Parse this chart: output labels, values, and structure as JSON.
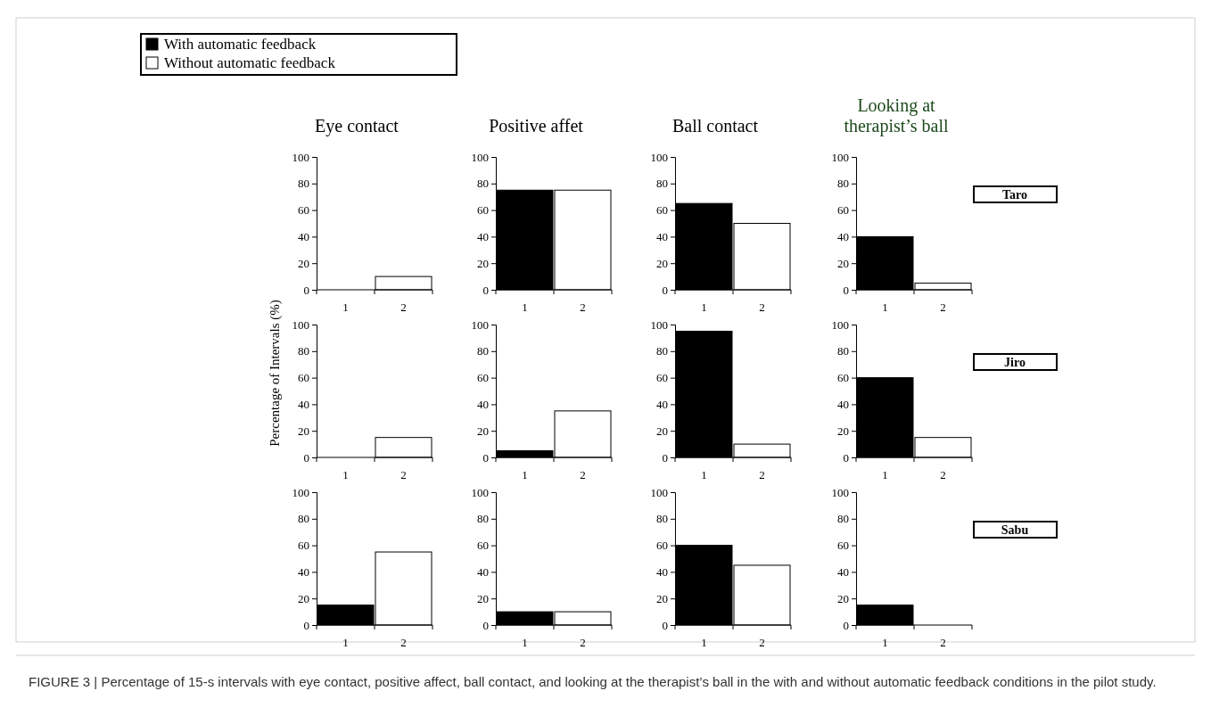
{
  "chart_data": [
    {
      "type": "bar",
      "title": "Eye contact",
      "categories": [
        "1",
        "2"
      ],
      "legend": "top",
      "series": [
        {
          "name": "With automatic feedback",
          "color": "#000000",
          "values": [
            0,
            null
          ]
        },
        {
          "name": "Without automatic feedback",
          "color": "#ffffff",
          "values": [
            null,
            10
          ]
        }
      ],
      "ylim": [
        0,
        100
      ],
      "yticks": [
        0,
        20,
        40,
        60,
        80,
        100
      ]
    },
    {
      "type": "bar",
      "title": "Positive affet",
      "categories": [
        "1",
        "2"
      ],
      "values": [
        75,
        75
      ],
      "colors": [
        "#000000",
        "#ffffff"
      ],
      "ylim": [
        0,
        100
      ],
      "yticks": [
        0,
        20,
        40,
        60,
        80,
        100
      ]
    },
    {
      "type": "bar",
      "title": "Ball contact",
      "categories": [
        "1",
        "2"
      ],
      "values": [
        65,
        50
      ],
      "colors": [
        "#000000",
        "#ffffff"
      ],
      "ylim": [
        0,
        100
      ],
      "yticks": [
        0,
        20,
        40,
        60,
        80,
        100
      ]
    },
    {
      "type": "bar",
      "title": "Looking at therapist’s ball",
      "categories": [
        "1",
        "2"
      ],
      "values": [
        40,
        5
      ],
      "colors": [
        "#000000",
        "#ffffff"
      ],
      "ylim": [
        0,
        100
      ],
      "yticks": [
        0,
        20,
        40,
        60,
        80,
        100
      ],
      "annotations": [
        "Taro"
      ]
    },
    {
      "type": "bar",
      "ylabel": "Percentage of Intervals (%)",
      "categories": [
        "1",
        "2"
      ],
      "values": [
        0,
        15
      ],
      "colors": [
        "#000000",
        "#ffffff"
      ],
      "ylim": [
        0,
        100
      ],
      "yticks": [
        0,
        20,
        40,
        60,
        80,
        100
      ]
    },
    {
      "type": "bar",
      "categories": [
        "1",
        "2"
      ],
      "values": [
        5,
        35
      ],
      "colors": [
        "#000000",
        "#ffffff"
      ],
      "ylim": [
        0,
        100
      ],
      "yticks": [
        0,
        20,
        40,
        60,
        80,
        100
      ]
    },
    {
      "type": "bar",
      "categories": [
        "1",
        "2"
      ],
      "values": [
        95,
        10
      ],
      "colors": [
        "#000000",
        "#ffffff"
      ],
      "ylim": [
        0,
        100
      ],
      "yticks": [
        0,
        20,
        40,
        60,
        80,
        100
      ]
    },
    {
      "type": "bar",
      "categories": [
        "1",
        "2"
      ],
      "values": [
        60,
        15
      ],
      "colors": [
        "#000000",
        "#ffffff"
      ],
      "ylim": [
        0,
        100
      ],
      "yticks": [
        0,
        20,
        40,
        60,
        80,
        100
      ],
      "annotations": [
        "Jiro"
      ]
    },
    {
      "type": "bar",
      "categories": [
        "1",
        "2"
      ],
      "values": [
        15,
        55
      ],
      "colors": [
        "#000000",
        "#ffffff"
      ],
      "ylim": [
        0,
        100
      ],
      "yticks": [
        0,
        20,
        40,
        60,
        80,
        100
      ]
    },
    {
      "type": "bar",
      "categories": [
        "1",
        "2"
      ],
      "values": [
        10,
        10
      ],
      "colors": [
        "#000000",
        "#ffffff"
      ],
      "ylim": [
        0,
        100
      ],
      "yticks": [
        0,
        20,
        40,
        60,
        80,
        100
      ]
    },
    {
      "type": "bar",
      "categories": [
        "1",
        "2"
      ],
      "values": [
        60,
        45
      ],
      "colors": [
        "#000000",
        "#ffffff"
      ],
      "ylim": [
        0,
        100
      ],
      "yticks": [
        0,
        20,
        40,
        60,
        80,
        100
      ]
    },
    {
      "type": "bar",
      "categories": [
        "1",
        "2"
      ],
      "values": [
        15,
        0
      ],
      "colors": [
        "#000000",
        "#ffffff"
      ],
      "ylim": [
        0,
        100
      ],
      "yticks": [
        0,
        20,
        40,
        60,
        80,
        100
      ],
      "annotations": [
        "Sabu",
        "FIGURE 3 | Percentage of 15-s intervals with eye contact, positive affect, ball contact, and looking at the therapist’s ball in the with and without automatic feedback conditions in the pilot study."
      ]
    }
  ]
}
